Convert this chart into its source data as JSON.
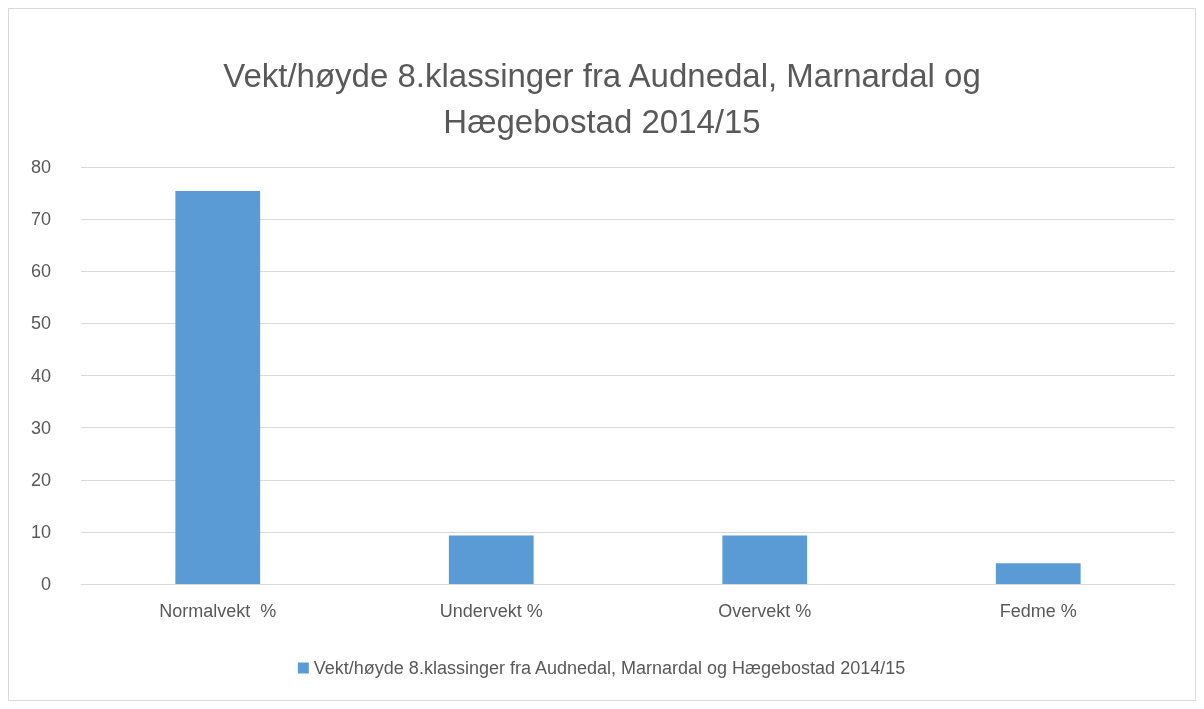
{
  "chart_data": {
    "type": "bar",
    "title": "Vekt/høyde 8.klassinger fra Audnedal, Marnardal og\nHægebostad 2014/15",
    "categories": [
      "Normalvekt  %",
      "Undervekt %",
      "Overvekt %",
      "Fedme %"
    ],
    "series": [
      {
        "name": "Vekt/høyde 8.klassinger fra Audnedal, Marnardal og Hægebostad 2014/15",
        "color": "#5b9bd5",
        "values": [
          75.4,
          9.3,
          9.3,
          4.0
        ]
      }
    ],
    "ylim": [
      0,
      80
    ],
    "yticks": [
      0,
      10,
      20,
      30,
      40,
      50,
      60,
      70,
      80
    ],
    "grid": "y",
    "legend": "bottom"
  }
}
